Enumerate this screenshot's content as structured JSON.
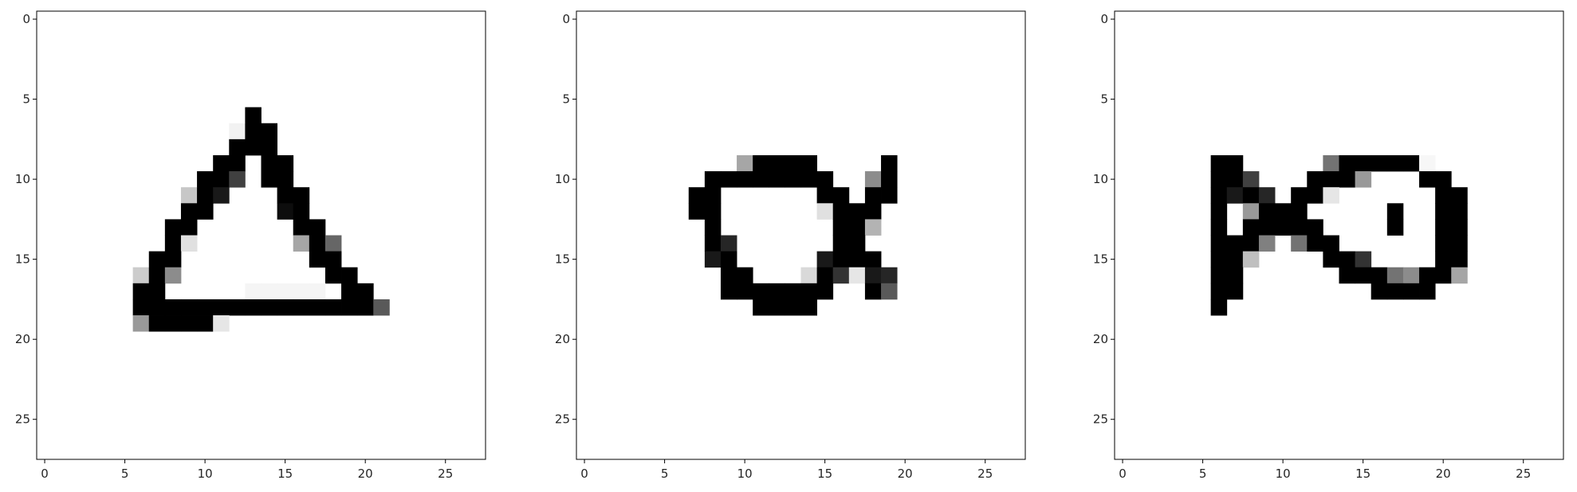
{
  "chart_data": [
    {
      "type": "heatmap",
      "colormap": "gray_r",
      "grid": false,
      "shape": [
        28,
        28
      ],
      "xlim": [
        -0.5,
        27.5
      ],
      "ylim": [
        27.5,
        -0.5
      ],
      "xticks": [
        "0",
        "5",
        "10",
        "15",
        "20",
        "25"
      ],
      "yticks": [
        "0",
        "5",
        "10",
        "15",
        "20",
        "25"
      ],
      "pixels": [
        {
          "r": 6,
          "c": 13,
          "v": 1
        },
        {
          "r": 7,
          "c": 12,
          "v": 0.05
        },
        {
          "r": 7,
          "c": 13,
          "v": 1
        },
        {
          "r": 7,
          "c": 14,
          "v": 1
        },
        {
          "r": 8,
          "c": 12,
          "v": 1
        },
        {
          "r": 8,
          "c": 13,
          "v": 1
        },
        {
          "r": 8,
          "c": 14,
          "v": 1
        },
        {
          "r": 9,
          "c": 11,
          "v": 1
        },
        {
          "r": 9,
          "c": 12,
          "v": 1
        },
        {
          "r": 9,
          "c": 14,
          "v": 1
        },
        {
          "r": 9,
          "c": 15,
          "v": 1
        },
        {
          "r": 10,
          "c": 10,
          "v": 1
        },
        {
          "r": 10,
          "c": 11,
          "v": 1
        },
        {
          "r": 10,
          "c": 12,
          "v": 0.75
        },
        {
          "r": 10,
          "c": 14,
          "v": 1
        },
        {
          "r": 10,
          "c": 15,
          "v": 1
        },
        {
          "r": 11,
          "c": 9,
          "v": 0.22
        },
        {
          "r": 11,
          "c": 10,
          "v": 1
        },
        {
          "r": 11,
          "c": 11,
          "v": 0.9
        },
        {
          "r": 11,
          "c": 15,
          "v": 1
        },
        {
          "r": 11,
          "c": 16,
          "v": 1
        },
        {
          "r": 12,
          "c": 9,
          "v": 1
        },
        {
          "r": 12,
          "c": 10,
          "v": 1
        },
        {
          "r": 12,
          "c": 15,
          "v": 0.95
        },
        {
          "r": 12,
          "c": 16,
          "v": 1
        },
        {
          "r": 13,
          "c": 8,
          "v": 1
        },
        {
          "r": 13,
          "c": 9,
          "v": 1
        },
        {
          "r": 13,
          "c": 16,
          "v": 1
        },
        {
          "r": 13,
          "c": 17,
          "v": 1
        },
        {
          "r": 14,
          "c": 8,
          "v": 1
        },
        {
          "r": 14,
          "c": 9,
          "v": 0.12
        },
        {
          "r": 14,
          "c": 16,
          "v": 0.35
        },
        {
          "r": 14,
          "c": 17,
          "v": 1
        },
        {
          "r": 14,
          "c": 18,
          "v": 0.6
        },
        {
          "r": 15,
          "c": 7,
          "v": 1
        },
        {
          "r": 15,
          "c": 8,
          "v": 1
        },
        {
          "r": 15,
          "c": 17,
          "v": 1
        },
        {
          "r": 15,
          "c": 18,
          "v": 1
        },
        {
          "r": 16,
          "c": 6,
          "v": 0.2
        },
        {
          "r": 16,
          "c": 7,
          "v": 1
        },
        {
          "r": 16,
          "c": 8,
          "v": 0.45
        },
        {
          "r": 16,
          "c": 18,
          "v": 1
        },
        {
          "r": 16,
          "c": 19,
          "v": 1
        },
        {
          "r": 17,
          "c": 6,
          "v": 1
        },
        {
          "r": 17,
          "c": 7,
          "v": 1
        },
        {
          "r": 17,
          "c": 13,
          "v": 0.04
        },
        {
          "r": 17,
          "c": 14,
          "v": 0.04
        },
        {
          "r": 17,
          "c": 15,
          "v": 0.04
        },
        {
          "r": 17,
          "c": 16,
          "v": 0.04
        },
        {
          "r": 17,
          "c": 17,
          "v": 0.04
        },
        {
          "r": 17,
          "c": 19,
          "v": 1
        },
        {
          "r": 17,
          "c": 20,
          "v": 1
        },
        {
          "r": 18,
          "c": 6,
          "v": 1
        },
        {
          "r": 18,
          "c": 7,
          "v": 1
        },
        {
          "r": 18,
          "c": 8,
          "v": 1
        },
        {
          "r": 18,
          "c": 9,
          "v": 1
        },
        {
          "r": 18,
          "c": 10,
          "v": 1
        },
        {
          "r": 18,
          "c": 11,
          "v": 1
        },
        {
          "r": 18,
          "c": 12,
          "v": 1
        },
        {
          "r": 18,
          "c": 13,
          "v": 1
        },
        {
          "r": 18,
          "c": 14,
          "v": 1
        },
        {
          "r": 18,
          "c": 15,
          "v": 1
        },
        {
          "r": 18,
          "c": 16,
          "v": 1
        },
        {
          "r": 18,
          "c": 17,
          "v": 1
        },
        {
          "r": 18,
          "c": 18,
          "v": 1
        },
        {
          "r": 18,
          "c": 19,
          "v": 1
        },
        {
          "r": 18,
          "c": 20,
          "v": 1
        },
        {
          "r": 18,
          "c": 21,
          "v": 0.65
        },
        {
          "r": 19,
          "c": 6,
          "v": 0.4
        },
        {
          "r": 19,
          "c": 7,
          "v": 1
        },
        {
          "r": 19,
          "c": 8,
          "v": 1
        },
        {
          "r": 19,
          "c": 9,
          "v": 1
        },
        {
          "r": 19,
          "c": 10,
          "v": 1
        },
        {
          "r": 19,
          "c": 11,
          "v": 0.1
        }
      ]
    },
    {
      "type": "heatmap",
      "colormap": "gray_r",
      "grid": false,
      "shape": [
        28,
        28
      ],
      "xlim": [
        -0.5,
        27.5
      ],
      "ylim": [
        27.5,
        -0.5
      ],
      "xticks": [
        "0",
        "5",
        "10",
        "15",
        "20",
        "25"
      ],
      "yticks": [
        "0",
        "5",
        "10",
        "15",
        "20",
        "25"
      ],
      "pixels": [
        {
          "r": 9,
          "c": 10,
          "v": 0.35
        },
        {
          "r": 9,
          "c": 11,
          "v": 1
        },
        {
          "r": 9,
          "c": 12,
          "v": 1
        },
        {
          "r": 9,
          "c": 13,
          "v": 1
        },
        {
          "r": 9,
          "c": 14,
          "v": 1
        },
        {
          "r": 9,
          "c": 19,
          "v": 1
        },
        {
          "r": 10,
          "c": 8,
          "v": 1
        },
        {
          "r": 10,
          "c": 9,
          "v": 1
        },
        {
          "r": 10,
          "c": 10,
          "v": 1
        },
        {
          "r": 10,
          "c": 11,
          "v": 1
        },
        {
          "r": 10,
          "c": 12,
          "v": 1
        },
        {
          "r": 10,
          "c": 13,
          "v": 1
        },
        {
          "r": 10,
          "c": 14,
          "v": 1
        },
        {
          "r": 10,
          "c": 15,
          "v": 1
        },
        {
          "r": 10,
          "c": 18,
          "v": 0.45
        },
        {
          "r": 10,
          "c": 19,
          "v": 1
        },
        {
          "r": 11,
          "c": 7,
          "v": 1
        },
        {
          "r": 11,
          "c": 8,
          "v": 1
        },
        {
          "r": 11,
          "c": 15,
          "v": 1
        },
        {
          "r": 11,
          "c": 16,
          "v": 1
        },
        {
          "r": 11,
          "c": 18,
          "v": 1
        },
        {
          "r": 11,
          "c": 19,
          "v": 1
        },
        {
          "r": 12,
          "c": 7,
          "v": 1
        },
        {
          "r": 12,
          "c": 8,
          "v": 1
        },
        {
          "r": 12,
          "c": 15,
          "v": 0.12
        },
        {
          "r": 12,
          "c": 16,
          "v": 1
        },
        {
          "r": 12,
          "c": 17,
          "v": 1
        },
        {
          "r": 12,
          "c": 18,
          "v": 1
        },
        {
          "r": 13,
          "c": 8,
          "v": 1
        },
        {
          "r": 13,
          "c": 16,
          "v": 1
        },
        {
          "r": 13,
          "c": 17,
          "v": 1
        },
        {
          "r": 13,
          "c": 18,
          "v": 0.3
        },
        {
          "r": 14,
          "c": 8,
          "v": 1
        },
        {
          "r": 14,
          "c": 9,
          "v": 0.85
        },
        {
          "r": 14,
          "c": 16,
          "v": 1
        },
        {
          "r": 14,
          "c": 17,
          "v": 1
        },
        {
          "r": 15,
          "c": 8,
          "v": 0.9
        },
        {
          "r": 15,
          "c": 9,
          "v": 1
        },
        {
          "r": 15,
          "c": 15,
          "v": 0.9
        },
        {
          "r": 15,
          "c": 16,
          "v": 1
        },
        {
          "r": 15,
          "c": 17,
          "v": 1
        },
        {
          "r": 15,
          "c": 18,
          "v": 1
        },
        {
          "r": 16,
          "c": 9,
          "v": 1
        },
        {
          "r": 16,
          "c": 10,
          "v": 1
        },
        {
          "r": 16,
          "c": 14,
          "v": 0.15
        },
        {
          "r": 16,
          "c": 15,
          "v": 1
        },
        {
          "r": 16,
          "c": 16,
          "v": 0.8
        },
        {
          "r": 16,
          "c": 17,
          "v": 0.1
        },
        {
          "r": 16,
          "c": 18,
          "v": 0.9
        },
        {
          "r": 16,
          "c": 19,
          "v": 0.85
        },
        {
          "r": 17,
          "c": 9,
          "v": 1
        },
        {
          "r": 17,
          "c": 10,
          "v": 1
        },
        {
          "r": 17,
          "c": 11,
          "v": 1
        },
        {
          "r": 17,
          "c": 12,
          "v": 1
        },
        {
          "r": 17,
          "c": 13,
          "v": 1
        },
        {
          "r": 17,
          "c": 14,
          "v": 1
        },
        {
          "r": 17,
          "c": 15,
          "v": 1
        },
        {
          "r": 17,
          "c": 18,
          "v": 1
        },
        {
          "r": 17,
          "c": 19,
          "v": 0.65
        },
        {
          "r": 18,
          "c": 11,
          "v": 1
        },
        {
          "r": 18,
          "c": 12,
          "v": 1
        },
        {
          "r": 18,
          "c": 13,
          "v": 1
        },
        {
          "r": 18,
          "c": 14,
          "v": 1
        }
      ]
    },
    {
      "type": "heatmap",
      "colormap": "gray_r",
      "grid": false,
      "shape": [
        28,
        28
      ],
      "xlim": [
        -0.5,
        27.5
      ],
      "ylim": [
        27.5,
        -0.5
      ],
      "xticks": [
        "0",
        "5",
        "10",
        "15",
        "20",
        "25"
      ],
      "yticks": [
        "0",
        "5",
        "10",
        "15",
        "20",
        "25"
      ],
      "pixels": [
        {
          "r": 9,
          "c": 6,
          "v": 1
        },
        {
          "r": 9,
          "c": 7,
          "v": 1
        },
        {
          "r": 9,
          "c": 13,
          "v": 0.55
        },
        {
          "r": 9,
          "c": 14,
          "v": 1
        },
        {
          "r": 9,
          "c": 15,
          "v": 1
        },
        {
          "r": 9,
          "c": 16,
          "v": 1
        },
        {
          "r": 9,
          "c": 17,
          "v": 1
        },
        {
          "r": 9,
          "c": 18,
          "v": 1
        },
        {
          "r": 9,
          "c": 19,
          "v": 0.03
        },
        {
          "r": 10,
          "c": 6,
          "v": 1
        },
        {
          "r": 10,
          "c": 7,
          "v": 1
        },
        {
          "r": 10,
          "c": 8,
          "v": 0.75
        },
        {
          "r": 10,
          "c": 12,
          "v": 1
        },
        {
          "r": 10,
          "c": 13,
          "v": 1
        },
        {
          "r": 10,
          "c": 14,
          "v": 1
        },
        {
          "r": 10,
          "c": 15,
          "v": 0.4
        },
        {
          "r": 10,
          "c": 19,
          "v": 1
        },
        {
          "r": 10,
          "c": 20,
          "v": 1
        },
        {
          "r": 11,
          "c": 6,
          "v": 1
        },
        {
          "r": 11,
          "c": 7,
          "v": 0.9
        },
        {
          "r": 11,
          "c": 8,
          "v": 1
        },
        {
          "r": 11,
          "c": 9,
          "v": 0.85
        },
        {
          "r": 11,
          "c": 11,
          "v": 1
        },
        {
          "r": 11,
          "c": 12,
          "v": 1
        },
        {
          "r": 11,
          "c": 13,
          "v": 0.1
        },
        {
          "r": 11,
          "c": 20,
          "v": 1
        },
        {
          "r": 11,
          "c": 21,
          "v": 1
        },
        {
          "r": 12,
          "c": 6,
          "v": 1
        },
        {
          "r": 12,
          "c": 8,
          "v": 0.4
        },
        {
          "r": 12,
          "c": 9,
          "v": 1
        },
        {
          "r": 12,
          "c": 10,
          "v": 1
        },
        {
          "r": 12,
          "c": 11,
          "v": 1
        },
        {
          "r": 12,
          "c": 17,
          "v": 1
        },
        {
          "r": 12,
          "c": 20,
          "v": 1
        },
        {
          "r": 12,
          "c": 21,
          "v": 1
        },
        {
          "r": 13,
          "c": 6,
          "v": 1
        },
        {
          "r": 13,
          "c": 8,
          "v": 1
        },
        {
          "r": 13,
          "c": 9,
          "v": 1
        },
        {
          "r": 13,
          "c": 10,
          "v": 1
        },
        {
          "r": 13,
          "c": 11,
          "v": 1
        },
        {
          "r": 13,
          "c": 12,
          "v": 1
        },
        {
          "r": 13,
          "c": 17,
          "v": 1
        },
        {
          "r": 13,
          "c": 20,
          "v": 1
        },
        {
          "r": 13,
          "c": 21,
          "v": 1
        },
        {
          "r": 14,
          "c": 6,
          "v": 1
        },
        {
          "r": 14,
          "c": 7,
          "v": 1
        },
        {
          "r": 14,
          "c": 8,
          "v": 1
        },
        {
          "r": 14,
          "c": 9,
          "v": 0.5
        },
        {
          "r": 14,
          "c": 11,
          "v": 0.55
        },
        {
          "r": 14,
          "c": 12,
          "v": 1
        },
        {
          "r": 14,
          "c": 13,
          "v": 1
        },
        {
          "r": 14,
          "c": 20,
          "v": 1
        },
        {
          "r": 14,
          "c": 21,
          "v": 1
        },
        {
          "r": 15,
          "c": 6,
          "v": 1
        },
        {
          "r": 15,
          "c": 7,
          "v": 1
        },
        {
          "r": 15,
          "c": 8,
          "v": 0.25
        },
        {
          "r": 15,
          "c": 13,
          "v": 1
        },
        {
          "r": 15,
          "c": 14,
          "v": 1
        },
        {
          "r": 15,
          "c": 15,
          "v": 0.8
        },
        {
          "r": 15,
          "c": 20,
          "v": 1
        },
        {
          "r": 15,
          "c": 21,
          "v": 1
        },
        {
          "r": 16,
          "c": 6,
          "v": 1
        },
        {
          "r": 16,
          "c": 7,
          "v": 1
        },
        {
          "r": 16,
          "c": 14,
          "v": 1
        },
        {
          "r": 16,
          "c": 15,
          "v": 1
        },
        {
          "r": 16,
          "c": 16,
          "v": 1
        },
        {
          "r": 16,
          "c": 17,
          "v": 0.55
        },
        {
          "r": 16,
          "c": 18,
          "v": 0.45
        },
        {
          "r": 16,
          "c": 19,
          "v": 1
        },
        {
          "r": 16,
          "c": 20,
          "v": 1
        },
        {
          "r": 16,
          "c": 21,
          "v": 0.35
        },
        {
          "r": 17,
          "c": 6,
          "v": 1
        },
        {
          "r": 17,
          "c": 7,
          "v": 1
        },
        {
          "r": 17,
          "c": 16,
          "v": 1
        },
        {
          "r": 17,
          "c": 17,
          "v": 1
        },
        {
          "r": 17,
          "c": 18,
          "v": 1
        },
        {
          "r": 17,
          "c": 19,
          "v": 1
        },
        {
          "r": 18,
          "c": 6,
          "v": 1
        }
      ]
    }
  ]
}
